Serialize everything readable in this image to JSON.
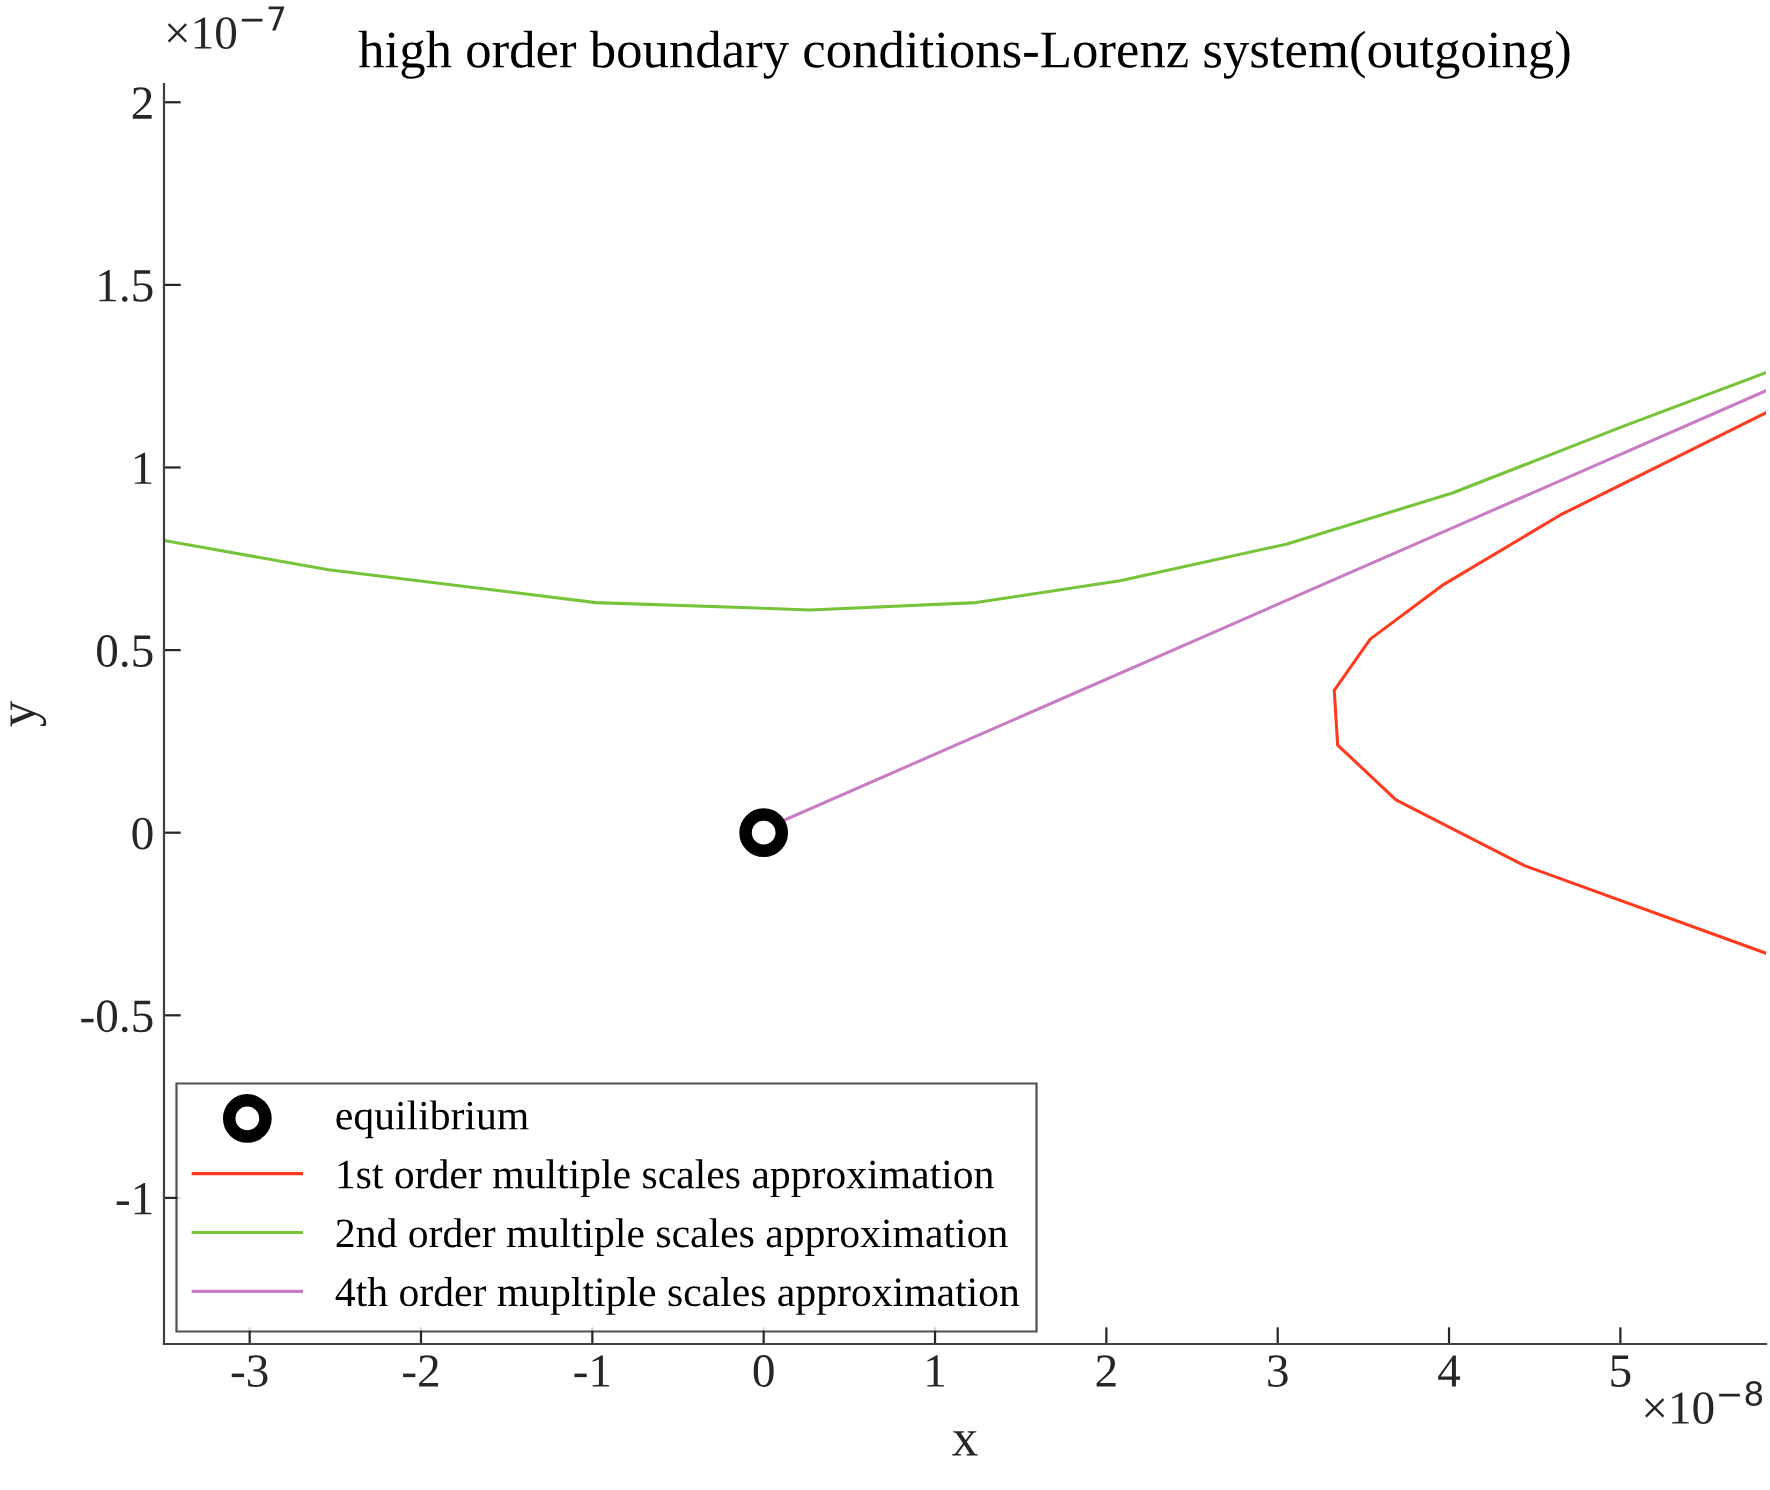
{
  "chart_data": {
    "type": "line",
    "title": "high order boundary conditions-Lorenz system(outgoing)",
    "xlabel": "x",
    "ylabel": "y",
    "annotations": [
      "×10$^{−8}$",
      "×10$^{−7}$"
    ],
    "xlim": [
      -3.5,
      5.85
    ],
    "ylim": [
      -1.4,
      2.05
    ],
    "xticks": [
      -3,
      -2,
      -1,
      0,
      1,
      2,
      3,
      4,
      5
    ],
    "yticks": [
      -1,
      -0.5,
      0,
      0.5,
      1,
      1.5,
      2
    ],
    "grid": false,
    "legend": "bottom left",
    "series": [
      {
        "name": "equilibrium",
        "type": "scatter",
        "marker": "circle",
        "color": "#000000",
        "x": [
          0
        ],
        "values": [
          0
        ]
      },
      {
        "name": "1st order multiple scales approximation",
        "color": "#ff3b1f",
        "x": [
          5.85,
          4.44,
          3.69,
          3.35,
          3.33,
          3.54,
          3.97,
          4.65,
          5.85
        ],
        "values": [
          -0.33,
          -0.09,
          0.09,
          0.24,
          0.39,
          0.53,
          0.68,
          0.87,
          1.15
        ]
      },
      {
        "name": "2nd order multiple scales approximation",
        "color": "#77c43a",
        "x": [
          -3.5,
          -2.54,
          -0.98,
          0.27,
          1.24,
          2.08,
          3.05,
          4.02,
          5.0,
          5.85
        ],
        "values": [
          0.8,
          0.72,
          0.63,
          0.61,
          0.63,
          0.69,
          0.79,
          0.93,
          1.11,
          1.26
        ]
      },
      {
        "name": "4th order mupltiple scales approximation",
        "color": "#c77cc4",
        "x": [
          0.05,
          5.85
        ],
        "values": [
          0.02,
          1.21
        ]
      }
    ]
  }
}
